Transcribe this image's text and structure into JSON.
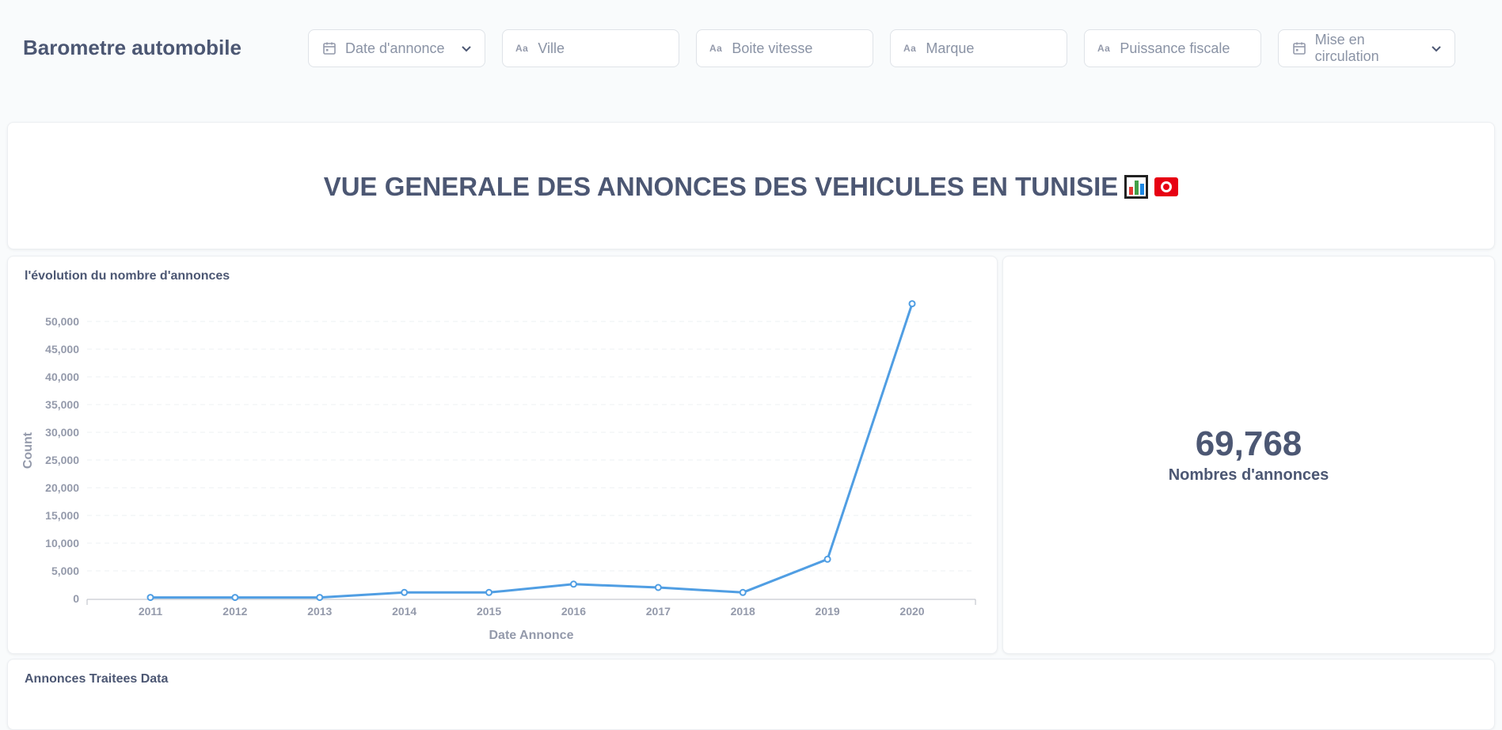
{
  "header": {
    "title": "Barometre automobile",
    "filters": [
      {
        "label": "Date d'annonce",
        "icon": "calendar-icon",
        "has_dropdown": true
      },
      {
        "label": "Ville",
        "icon": "text-aa-icon",
        "has_dropdown": false
      },
      {
        "label": "Boite vitesse",
        "icon": "text-aa-icon",
        "has_dropdown": false
      },
      {
        "label": "Marque",
        "icon": "text-aa-icon",
        "has_dropdown": false
      },
      {
        "label": "Puissance fiscale",
        "icon": "text-aa-icon",
        "has_dropdown": false
      },
      {
        "label": "Mise en circulation",
        "icon": "calendar-icon",
        "has_dropdown": true
      }
    ],
    "aa_text": "Aa"
  },
  "hero": {
    "text": "VUE GENERALE DES ANNONCES DES VEHICULES EN TUNISIE",
    "emojis": [
      "bar-chart-emoji",
      "tunisia-flag-emoji"
    ]
  },
  "chart_card": {
    "title": "l'évolution du nombre d'annonces"
  },
  "chart_data": {
    "type": "line",
    "title": "l'évolution du nombre d'annonces",
    "xlabel": "Date Annonce",
    "ylabel": "Count",
    "x": [
      "2011",
      "2012",
      "2013",
      "2014",
      "2015",
      "2016",
      "2017",
      "2018",
      "2019",
      "2020"
    ],
    "series": [
      {
        "values": [
          200,
          200,
          200,
          1100,
          1100,
          2600,
          2000,
          1100,
          7100,
          53200
        ]
      }
    ],
    "yticks": [
      "0",
      "5,000",
      "10,000",
      "15,000",
      "20,000",
      "25,000",
      "30,000",
      "35,000",
      "40,000",
      "45,000",
      "50,000"
    ],
    "ylim": [
      0,
      50000
    ],
    "grid": true,
    "color": "#509ee3"
  },
  "scalar": {
    "value": "69,768",
    "label": "Nombres d'annonces"
  },
  "table_card": {
    "title": "Annonces Traitees Data"
  },
  "colors": {
    "text": "#4c5773",
    "muted": "#949aab",
    "series": "#509ee3",
    "background": "#f9fbfc"
  }
}
